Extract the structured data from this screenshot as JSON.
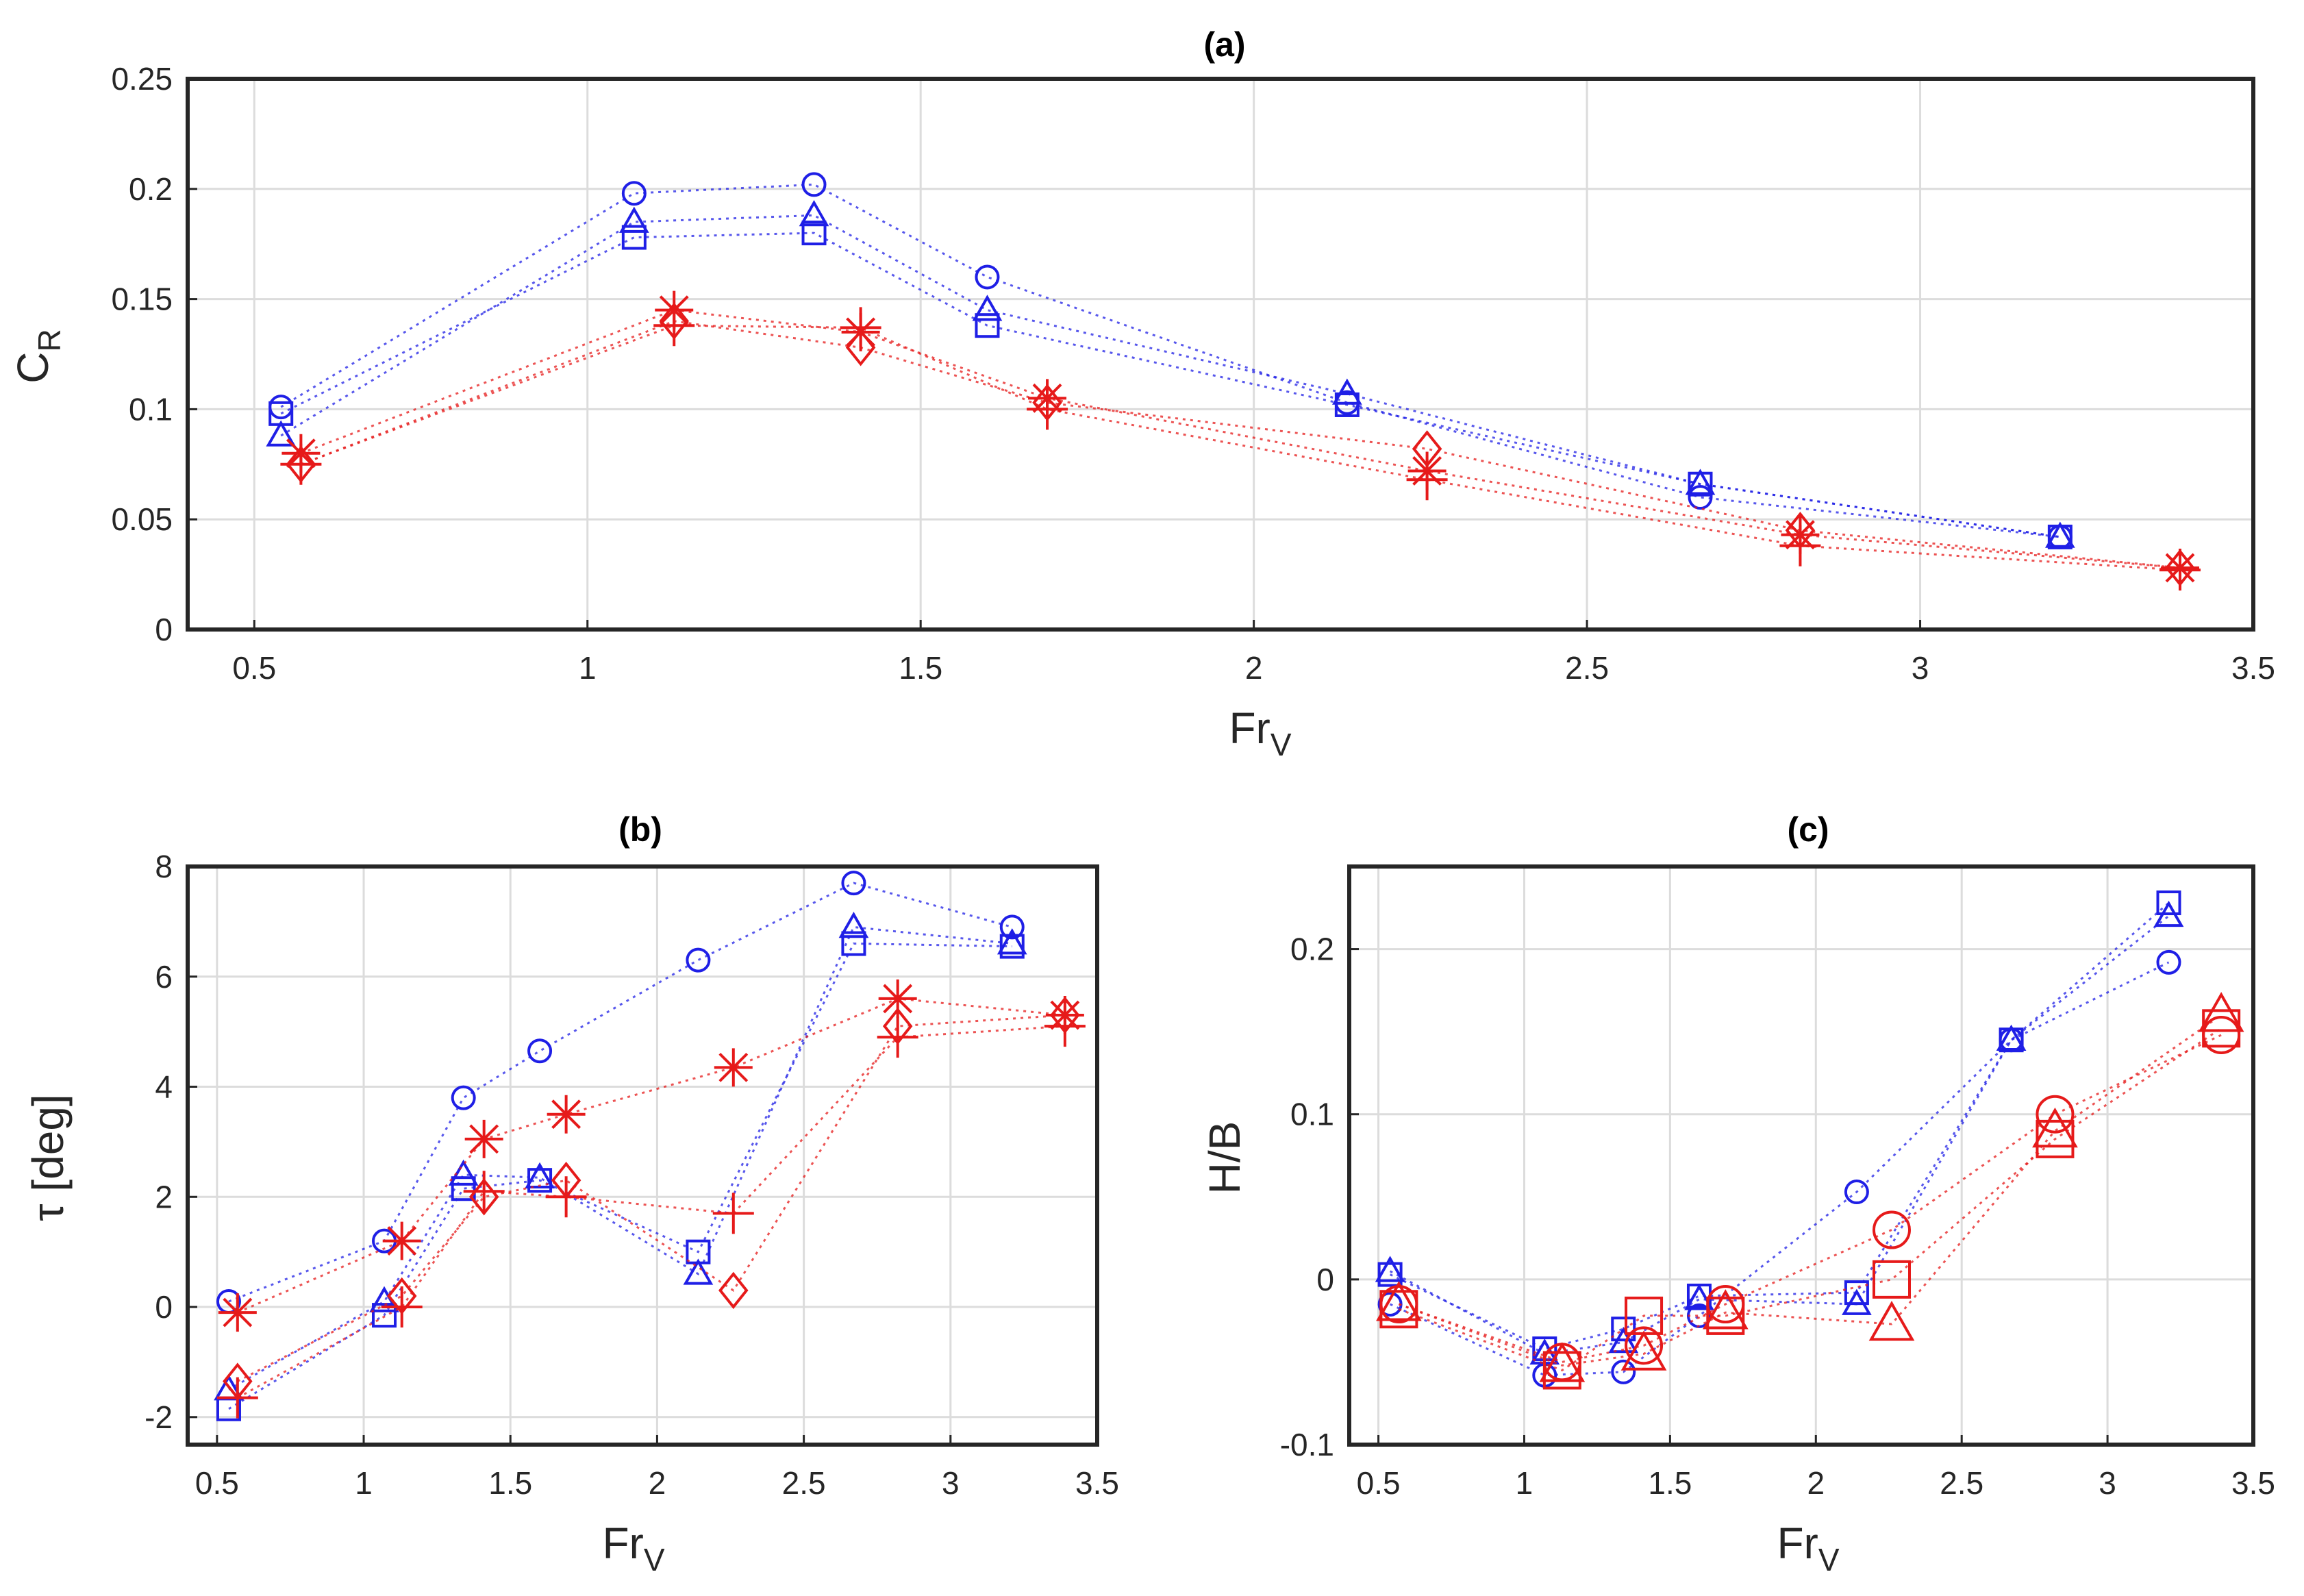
{
  "colors": {
    "blue": "#1f1fe6",
    "red": "#e61a1a",
    "grid": "#dcdcdc",
    "frame": "#262626"
  },
  "chart_data": [
    {
      "id": "a",
      "type": "line",
      "title": "(a)",
      "xlabel_main": "Fr",
      "xlabel_sub": "V",
      "ylabel_main": "C",
      "ylabel_sub": "R",
      "xlim": [
        0.4,
        3.5
      ],
      "ylim": [
        0,
        0.25
      ],
      "xticks": [
        0.5,
        1,
        1.5,
        2,
        2.5,
        3,
        3.5
      ],
      "xtick_labels": [
        "0.5",
        "1",
        "1.5",
        "2",
        "2.5",
        "3",
        "3.5"
      ],
      "yticks": [
        0,
        0.05,
        0.1,
        0.15,
        0.2,
        0.25
      ],
      "ytick_labels": [
        "0",
        "0.05",
        "0.1",
        "0.15",
        "0.2",
        "0.25"
      ],
      "grid": true,
      "series": [
        {
          "name": "blue-circle",
          "color": "blue",
          "marker": "circle",
          "x": [
            0.54,
            1.07,
            1.34,
            1.6,
            2.14,
            2.67,
            3.21
          ],
          "y": [
            0.101,
            0.198,
            0.202,
            0.16,
            0.103,
            0.06,
            0.042
          ]
        },
        {
          "name": "blue-triangle",
          "color": "blue",
          "marker": "triangle",
          "x": [
            0.54,
            1.07,
            1.34,
            1.6,
            2.14,
            2.67,
            3.21
          ],
          "y": [
            0.088,
            0.185,
            0.188,
            0.145,
            0.107,
            0.066,
            0.042
          ]
        },
        {
          "name": "blue-square",
          "color": "blue",
          "marker": "square",
          "x": [
            0.54,
            1.07,
            1.34,
            1.6,
            2.14,
            2.67,
            3.21
          ],
          "y": [
            0.098,
            0.178,
            0.18,
            0.138,
            0.102,
            0.066,
            0.042
          ]
        },
        {
          "name": "red-star",
          "color": "red",
          "marker": "star",
          "x": [
            0.57,
            1.13,
            1.41,
            1.69,
            2.26,
            2.82,
            3.39
          ],
          "y": [
            0.08,
            0.145,
            0.135,
            0.105,
            0.072,
            0.043,
            0.028
          ]
        },
        {
          "name": "red-diamond",
          "color": "red",
          "marker": "diamond",
          "x": [
            0.57,
            1.13,
            1.41,
            1.69,
            2.26,
            2.82,
            3.39
          ],
          "y": [
            0.075,
            0.14,
            0.128,
            0.103,
            0.082,
            0.045,
            0.028
          ]
        },
        {
          "name": "red-plus",
          "color": "red",
          "marker": "plus",
          "x": [
            0.57,
            1.13,
            1.41,
            1.69,
            2.26,
            2.82,
            3.39
          ],
          "y": [
            0.075,
            0.138,
            0.137,
            0.1,
            0.068,
            0.038,
            0.027
          ]
        }
      ]
    },
    {
      "id": "b",
      "type": "line",
      "title": "(b)",
      "xlabel_main": "Fr",
      "xlabel_sub": "V",
      "ylabel_main": "τ [deg]",
      "ylabel_sub": "",
      "xlim": [
        0.4,
        3.5
      ],
      "ylim": [
        -2.5,
        8
      ],
      "xticks": [
        0.5,
        1,
        1.5,
        2,
        2.5,
        3,
        3.5
      ],
      "xtick_labels": [
        "0.5",
        "1",
        "1.5",
        "2",
        "2.5",
        "3",
        "3.5"
      ],
      "yticks": [
        -2,
        0,
        2,
        4,
        6,
        8
      ],
      "ytick_labels": [
        "-2",
        "0",
        "2",
        "4",
        "6",
        "8"
      ],
      "grid": true,
      "series": [
        {
          "name": "blue-circle",
          "color": "blue",
          "marker": "circle",
          "x": [
            0.54,
            1.07,
            1.34,
            1.6,
            2.14,
            2.67,
            3.21
          ],
          "y": [
            0.1,
            1.2,
            3.8,
            4.65,
            6.3,
            7.7,
            6.9
          ]
        },
        {
          "name": "blue-triangle",
          "color": "blue",
          "marker": "triangle",
          "x": [
            0.54,
            1.07,
            1.34,
            1.6,
            2.14,
            2.67,
            3.21
          ],
          "y": [
            -1.5,
            0.1,
            2.4,
            2.35,
            0.6,
            6.9,
            6.6
          ]
        },
        {
          "name": "blue-square",
          "color": "blue",
          "marker": "square",
          "x": [
            0.54,
            1.07,
            1.34,
            1.6,
            2.14,
            2.67,
            3.21
          ],
          "y": [
            -1.85,
            -0.15,
            2.15,
            2.3,
            1.0,
            6.6,
            6.55
          ]
        },
        {
          "name": "red-star",
          "color": "red",
          "marker": "star",
          "x": [
            0.57,
            1.13,
            1.41,
            1.69,
            2.26,
            2.82,
            3.39
          ],
          "y": [
            -0.1,
            1.2,
            3.05,
            3.5,
            4.35,
            5.6,
            5.3
          ]
        },
        {
          "name": "red-diamond",
          "color": "red",
          "marker": "diamond",
          "x": [
            0.57,
            1.13,
            1.41,
            1.69,
            2.26,
            2.82,
            3.39
          ],
          "y": [
            -1.35,
            0.2,
            2.0,
            2.3,
            0.3,
            5.1,
            5.3
          ]
        },
        {
          "name": "red-plus",
          "color": "red",
          "marker": "plus",
          "x": [
            0.57,
            1.13,
            1.41,
            1.69,
            2.26,
            2.82,
            3.39
          ],
          "y": [
            -1.65,
            0.0,
            2.1,
            2.0,
            1.7,
            4.9,
            5.1
          ]
        }
      ]
    },
    {
      "id": "c",
      "type": "line",
      "title": "(c)",
      "xlabel_main": "Fr",
      "xlabel_sub": "V",
      "ylabel_main": "H/B",
      "ylabel_sub": "",
      "xlim": [
        0.4,
        3.5
      ],
      "ylim": [
        -0.1,
        0.25
      ],
      "xticks": [
        0.5,
        1,
        1.5,
        2,
        2.5,
        3,
        3.5
      ],
      "xtick_labels": [
        "0.5",
        "1",
        "1.5",
        "2",
        "2.5",
        "3",
        "3.5"
      ],
      "yticks": [
        -0.1,
        0,
        0.1,
        0.2
      ],
      "ytick_labels": [
        "-0.1",
        "0",
        "0.1",
        "0.2"
      ],
      "grid": true,
      "series": [
        {
          "name": "blue-circle",
          "color": "blue",
          "marker": "circle",
          "x": [
            0.54,
            1.07,
            1.34,
            1.6,
            2.14,
            2.67,
            3.21
          ],
          "y": [
            -0.015,
            -0.058,
            -0.056,
            -0.022,
            0.053,
            0.145,
            0.192
          ]
        },
        {
          "name": "blue-triangle",
          "color": "blue",
          "marker": "triangle",
          "x": [
            0.54,
            1.07,
            1.34,
            1.6,
            2.14,
            2.67,
            3.21
          ],
          "y": [
            0.005,
            -0.045,
            -0.038,
            -0.012,
            -0.015,
            0.145,
            0.22
          ]
        },
        {
          "name": "blue-square",
          "color": "blue",
          "marker": "square",
          "x": [
            0.54,
            1.07,
            1.34,
            1.6,
            2.14,
            2.67,
            3.21
          ],
          "y": [
            0.003,
            -0.042,
            -0.03,
            -0.01,
            -0.008,
            0.145,
            0.228
          ]
        },
        {
          "name": "red-circle",
          "color": "red",
          "marker": "circle-large",
          "x": [
            0.57,
            1.13,
            1.41,
            1.69,
            2.26,
            2.82,
            3.39
          ],
          "y": [
            -0.015,
            -0.05,
            -0.04,
            -0.015,
            0.03,
            0.1,
            0.148
          ]
        },
        {
          "name": "red-triangle",
          "color": "red",
          "marker": "triangle-large",
          "x": [
            0.57,
            1.13,
            1.41,
            1.69,
            2.26,
            2.82,
            3.39
          ],
          "y": [
            -0.015,
            -0.052,
            -0.045,
            -0.02,
            -0.027,
            0.09,
            0.16
          ]
        },
        {
          "name": "red-square",
          "color": "red",
          "marker": "square-large",
          "x": [
            0.57,
            1.13,
            1.41,
            1.69,
            2.26,
            2.82,
            3.39
          ],
          "y": [
            -0.018,
            -0.055,
            -0.022,
            -0.022,
            0.0,
            0.085,
            0.152
          ]
        }
      ]
    }
  ]
}
